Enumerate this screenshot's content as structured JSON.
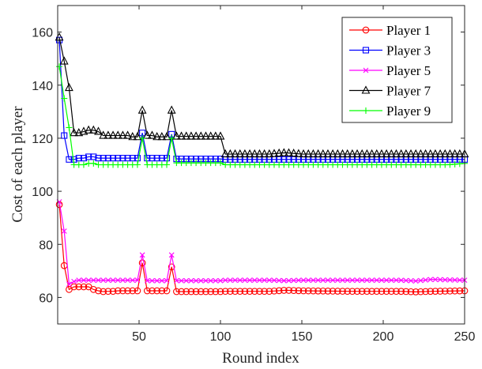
{
  "chart_data": {
    "type": "line",
    "xlabel": "Round index",
    "ylabel": "Cost of each player",
    "xlim": [
      0,
      250
    ],
    "ylim": [
      50,
      170
    ],
    "xticks": [
      50,
      100,
      150,
      200,
      250
    ],
    "yticks": [
      60,
      80,
      100,
      120,
      140,
      160
    ],
    "grid": false,
    "legend_position": "top-right",
    "marker_every": 3,
    "series": [
      {
        "name": "Player 1",
        "color": "#ff0000",
        "marker": "circle",
        "x": [
          1,
          4,
          7,
          10,
          13,
          16,
          19,
          22,
          25,
          28,
          31,
          34,
          37,
          40,
          43,
          46,
          49,
          52,
          55,
          58,
          61,
          64,
          67,
          70,
          73,
          76,
          100,
          103,
          130,
          140,
          150,
          180,
          210,
          220,
          230,
          240,
          250
        ],
        "y": [
          95,
          72,
          63,
          64,
          64,
          64,
          64,
          63,
          62.5,
          62.2,
          62.3,
          62.3,
          62.5,
          62.5,
          62.5,
          62.5,
          62.5,
          73,
          62.5,
          62.5,
          62.5,
          62.5,
          62.5,
          71.5,
          62.2,
          62.2,
          62.2,
          62.3,
          62.3,
          62.7,
          62.5,
          62.3,
          62.3,
          62.1,
          62.3,
          62.4,
          62.5
        ]
      },
      {
        "name": "Player 3",
        "color": "#0000ff",
        "marker": "square",
        "x": [
          1,
          4,
          7,
          10,
          13,
          16,
          19,
          22,
          25,
          28,
          31,
          34,
          37,
          40,
          43,
          46,
          49,
          52,
          55,
          58,
          61,
          64,
          67,
          70,
          73,
          76,
          100,
          103,
          130,
          140,
          150,
          180,
          210,
          220,
          230,
          240,
          250
        ],
        "y": [
          157,
          121,
          112,
          112,
          112.5,
          112.5,
          113,
          113,
          112.5,
          112.5,
          112.5,
          112.5,
          112.5,
          112.5,
          112.5,
          112.5,
          112.5,
          122,
          112.5,
          112.5,
          112.5,
          112.5,
          112.5,
          121.5,
          112.2,
          112.2,
          112.2,
          112,
          112,
          112,
          112,
          112,
          112,
          112,
          112,
          112,
          112
        ]
      },
      {
        "name": "Player 5",
        "color": "#ff00ff",
        "marker": "x",
        "x": [
          1,
          4,
          7,
          10,
          13,
          16,
          19,
          22,
          25,
          28,
          31,
          34,
          37,
          40,
          43,
          46,
          49,
          52,
          55,
          58,
          61,
          64,
          67,
          70,
          73,
          76,
          100,
          103,
          130,
          140,
          150,
          180,
          210,
          220,
          230,
          240,
          250
        ],
        "y": [
          96,
          85,
          65,
          66,
          66.5,
          66.5,
          66.5,
          66.5,
          66.5,
          66.5,
          66.5,
          66.5,
          66.5,
          66.5,
          66.5,
          66.5,
          66.5,
          76,
          66.3,
          66.3,
          66.3,
          66.3,
          66.3,
          76,
          66.3,
          66.3,
          66.3,
          66.5,
          66.5,
          66.3,
          66.5,
          66.5,
          66.5,
          66.2,
          66.8,
          66.6,
          66.5
        ]
      },
      {
        "name": "Player 7",
        "color": "#000000",
        "marker": "triangle",
        "x": [
          1,
          4,
          7,
          10,
          13,
          16,
          19,
          22,
          25,
          28,
          31,
          34,
          37,
          40,
          43,
          46,
          49,
          52,
          55,
          58,
          61,
          64,
          67,
          70,
          73,
          76,
          100,
          103,
          130,
          140,
          150,
          180,
          210,
          220,
          230,
          240,
          250
        ],
        "y": [
          158,
          149,
          139,
          122,
          122,
          122.5,
          123,
          123,
          122.5,
          121,
          121,
          121,
          121,
          121,
          121,
          120.5,
          120.5,
          130.5,
          121,
          121,
          120.5,
          120.5,
          120.5,
          130.5,
          120.7,
          120.7,
          120.7,
          114,
          114,
          114.5,
          114,
          114,
          114,
          114,
          114,
          114,
          114
        ]
      },
      {
        "name": "Player 9",
        "color": "#00ff00",
        "marker": "plus",
        "x": [
          1,
          4,
          7,
          10,
          13,
          16,
          19,
          22,
          25,
          28,
          31,
          34,
          37,
          40,
          43,
          46,
          49,
          52,
          55,
          58,
          61,
          64,
          67,
          70,
          73,
          76,
          100,
          103,
          130,
          140,
          150,
          180,
          210,
          220,
          230,
          240,
          250
        ],
        "y": [
          147,
          135,
          124,
          110,
          110,
          110,
          110.5,
          110.5,
          110,
          110,
          110,
          110,
          110,
          110,
          110,
          110,
          110,
          120,
          110,
          110,
          110,
          110,
          110,
          120,
          110.7,
          110.7,
          110.7,
          110,
          110,
          110,
          110,
          110,
          110,
          110,
          110,
          110,
          110.5
        ]
      }
    ]
  }
}
